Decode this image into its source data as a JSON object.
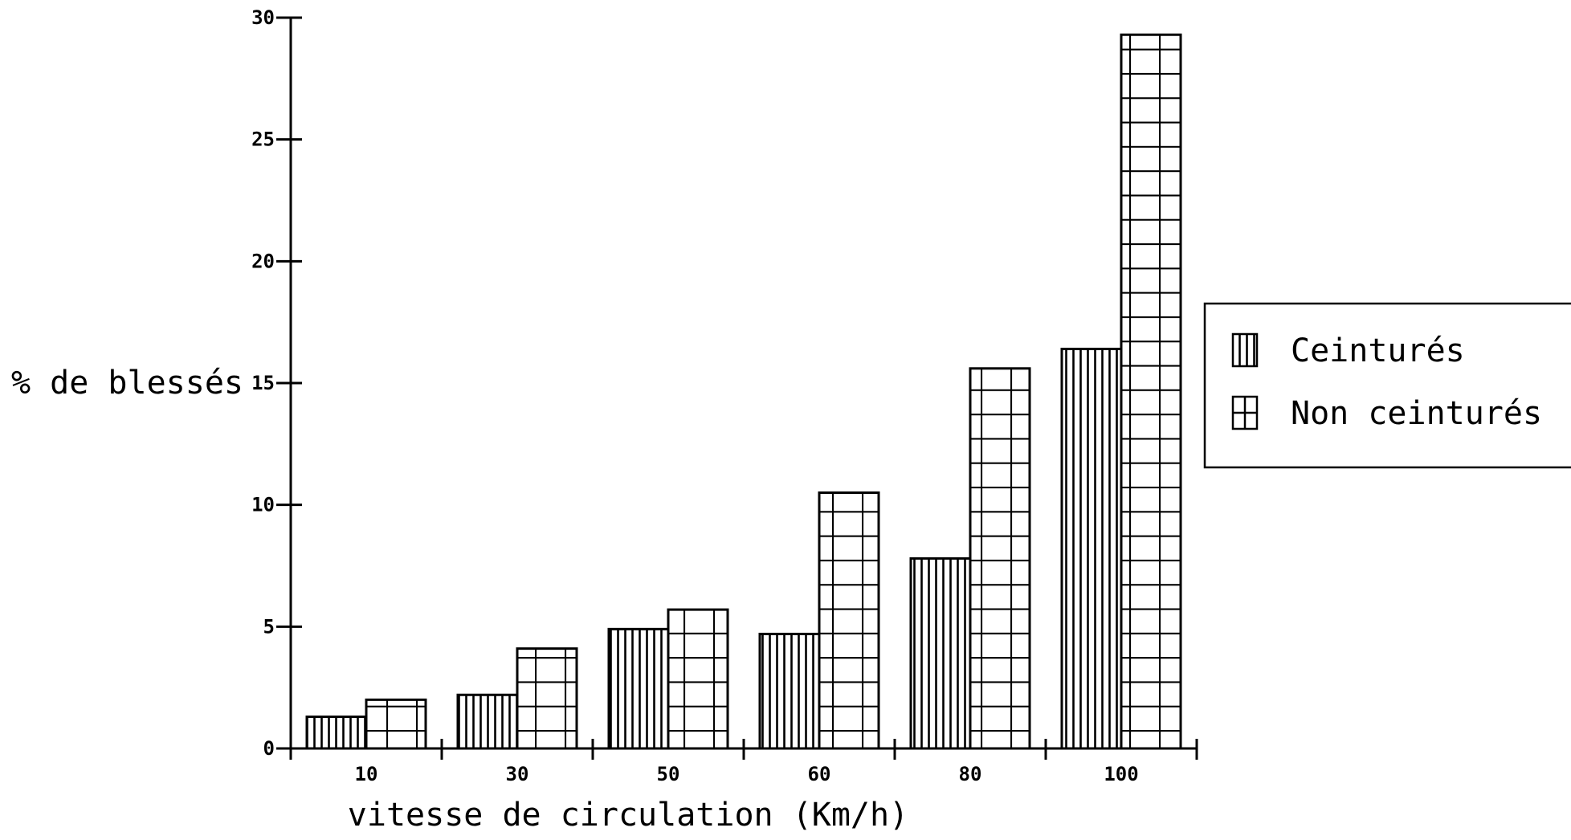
{
  "chart_data": {
    "type": "bar",
    "title": "",
    "xlabel": "vitesse de circulation  (Km/h)",
    "ylabel": "% de blessés",
    "categories": [
      "10",
      "30",
      "50",
      "60",
      "80",
      "100"
    ],
    "series": [
      {
        "name": "Ceinturés",
        "values": [
          1.3,
          2.2,
          4.9,
          4.7,
          7.8,
          16.4
        ],
        "pattern": "vertical-hatch"
      },
      {
        "name": "Non ceinturés",
        "values": [
          2.0,
          4.1,
          5.7,
          10.5,
          15.6,
          29.3
        ],
        "pattern": "grid"
      }
    ],
    "ylim": [
      0,
      30
    ],
    "yticks": [
      "0",
      "5",
      "10",
      "15",
      "20",
      "25",
      "30"
    ],
    "grid": false,
    "legend_position": "right",
    "colors": {
      "ink": "#000000",
      "background": "#ffffff"
    }
  }
}
